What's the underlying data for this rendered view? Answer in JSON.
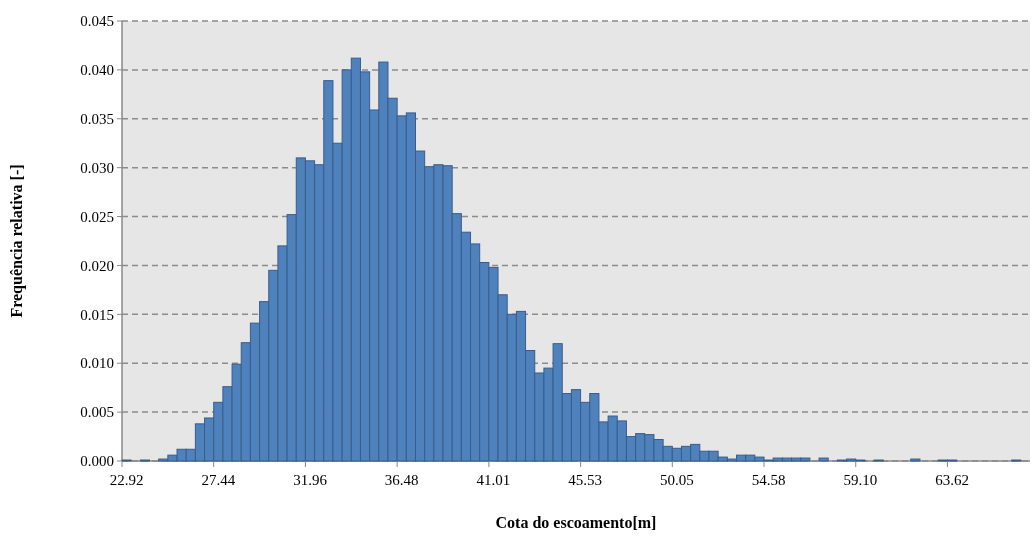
{
  "chart_data": {
    "type": "bar",
    "xlabel": "Cota do escoamento[m]",
    "ylabel": "Frequência relativa [-]",
    "categories": [
      "22.92",
      null,
      null,
      null,
      null,
      null,
      null,
      null,
      null,
      null,
      "27.44",
      null,
      null,
      null,
      null,
      null,
      null,
      null,
      null,
      null,
      "31.96",
      null,
      null,
      null,
      null,
      null,
      null,
      null,
      null,
      null,
      "36.48",
      null,
      null,
      null,
      null,
      null,
      null,
      null,
      null,
      null,
      "41.01",
      null,
      null,
      null,
      null,
      null,
      null,
      null,
      null,
      null,
      "45.53",
      null,
      null,
      null,
      null,
      null,
      null,
      null,
      null,
      null,
      "50.05",
      null,
      null,
      null,
      null,
      null,
      null,
      null,
      null,
      null,
      "54.58",
      null,
      null,
      null,
      null,
      null,
      null,
      null,
      null,
      null,
      "59.10",
      null,
      null,
      null,
      null,
      null,
      null,
      null,
      null,
      null,
      "63.62",
      null,
      null,
      null,
      null,
      null,
      null,
      null,
      null
    ],
    "values": [
      0.0001,
      0,
      0.0001,
      0,
      0.0002,
      0.0006,
      0.0012,
      0.0012,
      0.0038,
      0.0044,
      0.006,
      0.0076,
      0.0099,
      0.0121,
      0.0141,
      0.0163,
      0.0195,
      0.022,
      0.0252,
      0.031,
      0.0307,
      0.0303,
      0.0389,
      0.0325,
      0.04,
      0.0412,
      0.0398,
      0.0359,
      0.0408,
      0.0371,
      0.0353,
      0.0356,
      0.0317,
      0.0301,
      0.0303,
      0.0302,
      0.0253,
      0.0234,
      0.0222,
      0.0203,
      0.0198,
      0.017,
      0.015,
      0.0153,
      0.0113,
      0.009,
      0.0095,
      0.012,
      0.0069,
      0.0073,
      0.006,
      0.0069,
      0.004,
      0.0046,
      0.0041,
      0.0025,
      0.0028,
      0.0027,
      0.0022,
      0.0015,
      0.0013,
      0.0015,
      0.0017,
      0.001,
      0.001,
      0.0004,
      0.0002,
      0.0006,
      0.0006,
      0.0004,
      0.0001,
      0.0003,
      0.0003,
      0.0003,
      0.0003,
      0,
      0.0003,
      0,
      0.0001,
      0.0002,
      0.0001,
      0,
      0.0001,
      0,
      0,
      0,
      0.0002,
      0,
      0,
      0.0001,
      0.0001,
      0,
      0,
      0,
      0,
      0,
      0,
      0.0001,
      0
    ],
    "color": "#4f81bd",
    "ylim": [
      0,
      0.045
    ],
    "yticks": [
      {
        "value": 0,
        "label": "0.000"
      },
      {
        "value": 0.005,
        "label": "0.005"
      },
      {
        "value": 0.01,
        "label": "0.010"
      },
      {
        "value": 0.015,
        "label": "0.015"
      },
      {
        "value": 0.02,
        "label": "0.020"
      },
      {
        "value": 0.025,
        "label": "0.025"
      },
      {
        "value": 0.03,
        "label": "0.030"
      },
      {
        "value": 0.035,
        "label": "0.035"
      },
      {
        "value": 0.04,
        "label": "0.040"
      },
      {
        "value": 0.045,
        "label": "0.045"
      }
    ],
    "grid": "y"
  }
}
